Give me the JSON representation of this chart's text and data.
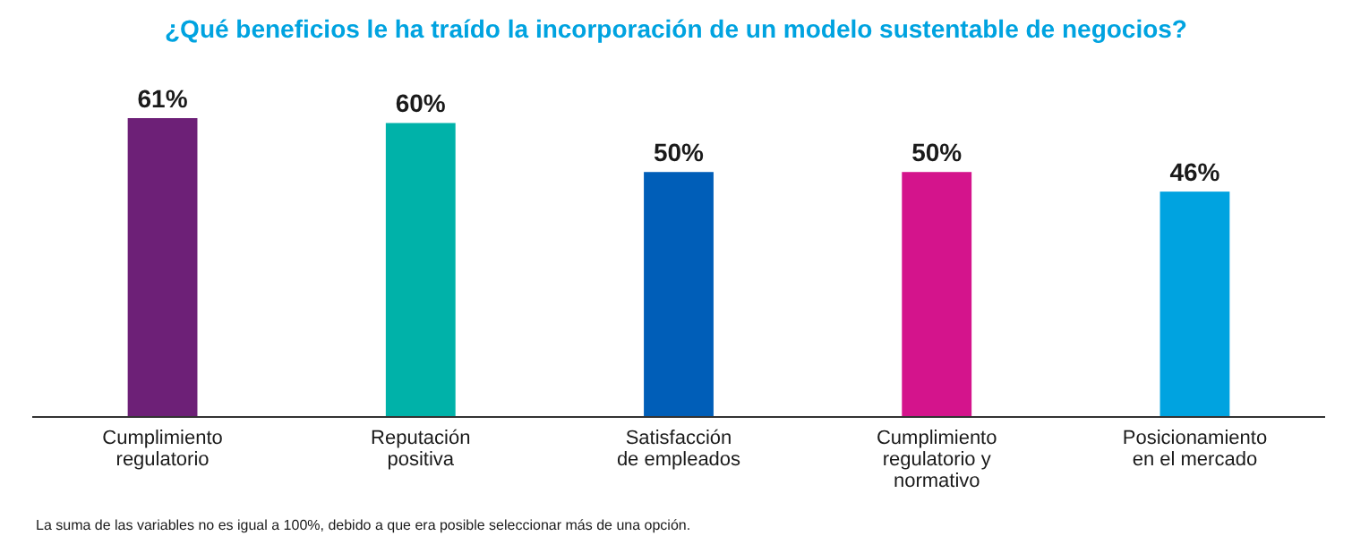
{
  "chart_data": {
    "type": "bar",
    "title": "¿Qué beneficios le ha traído la incorporación de un modelo sustentable de negocios?",
    "categories": [
      "Cumplimiento regulatorio",
      "Reputación positiva",
      "Satisfacción de empleados",
      "Cumplimiento regulatorio y normativo",
      "Posicionamiento en el mercado"
    ],
    "values": [
      61,
      60,
      50,
      50,
      46
    ],
    "colors": [
      "#6d2077",
      "#00b2a9",
      "#005eb8",
      "#d4148c",
      "#00a3e0"
    ],
    "value_labels": [
      "61%",
      "60%",
      "50%",
      "50%",
      "46%"
    ],
    "annotations": [
      "La suma de las variables no es igual a 100%, debido a que era posible seleccionar más de una opción."
    ]
  }
}
